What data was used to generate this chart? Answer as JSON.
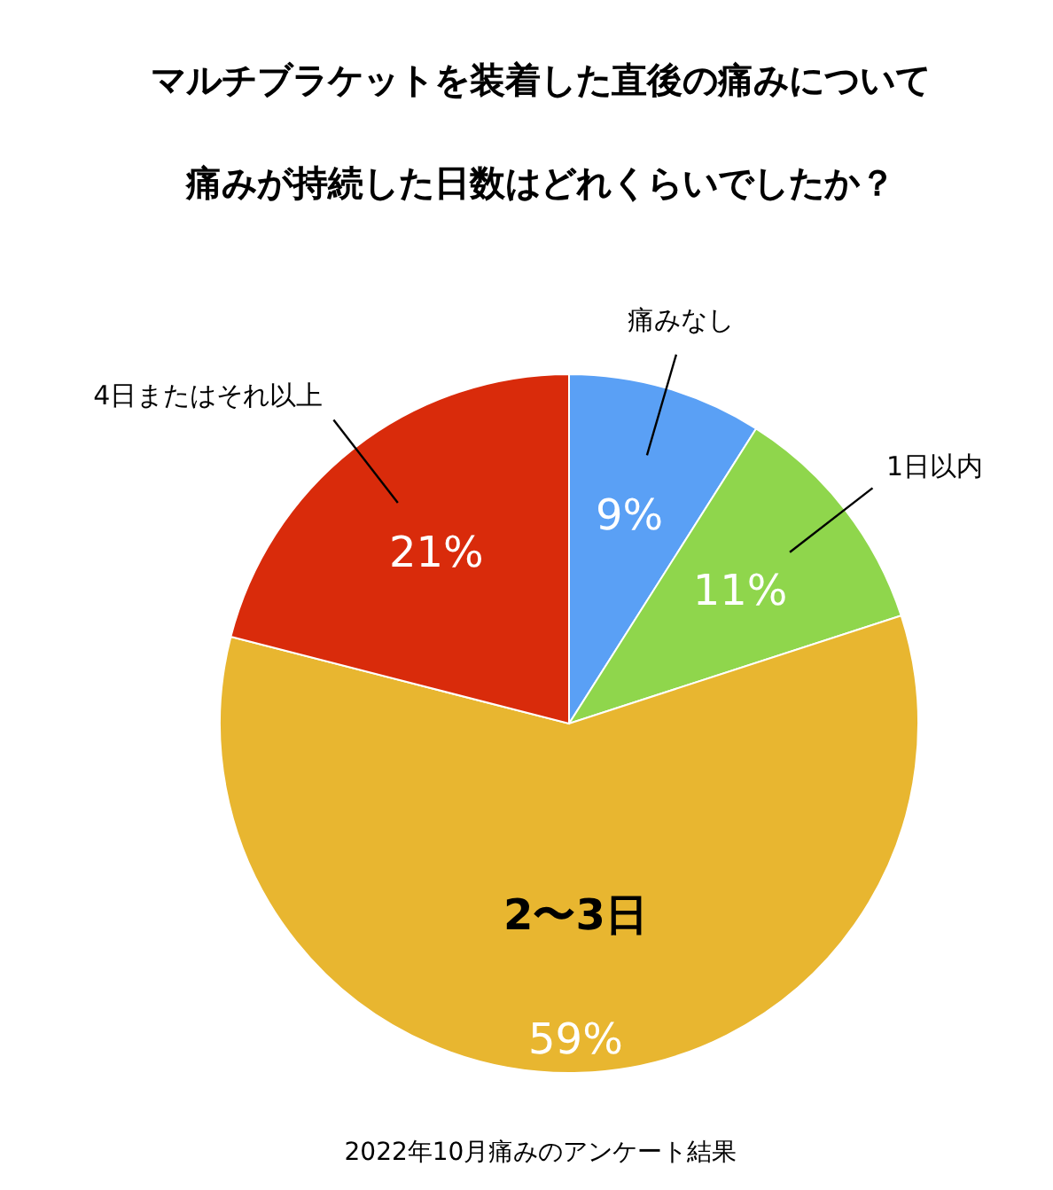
{
  "chart_data": {
    "type": "pie",
    "title": "マルチブラケットを装着した直後の痛みについて",
    "subtitle": "痛みが持続した日数はどれくらいでしたか？",
    "categories": [
      "痛みなし",
      "1日以内",
      "2〜3日",
      "4日またはそれ以上"
    ],
    "values": [
      9,
      11,
      59,
      21
    ],
    "colors": [
      "#5aa0f5",
      "#8fd64c",
      "#e8b630",
      "#d92b0b"
    ],
    "value_labels": [
      "9%",
      "11%",
      "59%",
      "21%"
    ],
    "annotations": [
      "2022年10月痛みのアンケート結果"
    ]
  }
}
